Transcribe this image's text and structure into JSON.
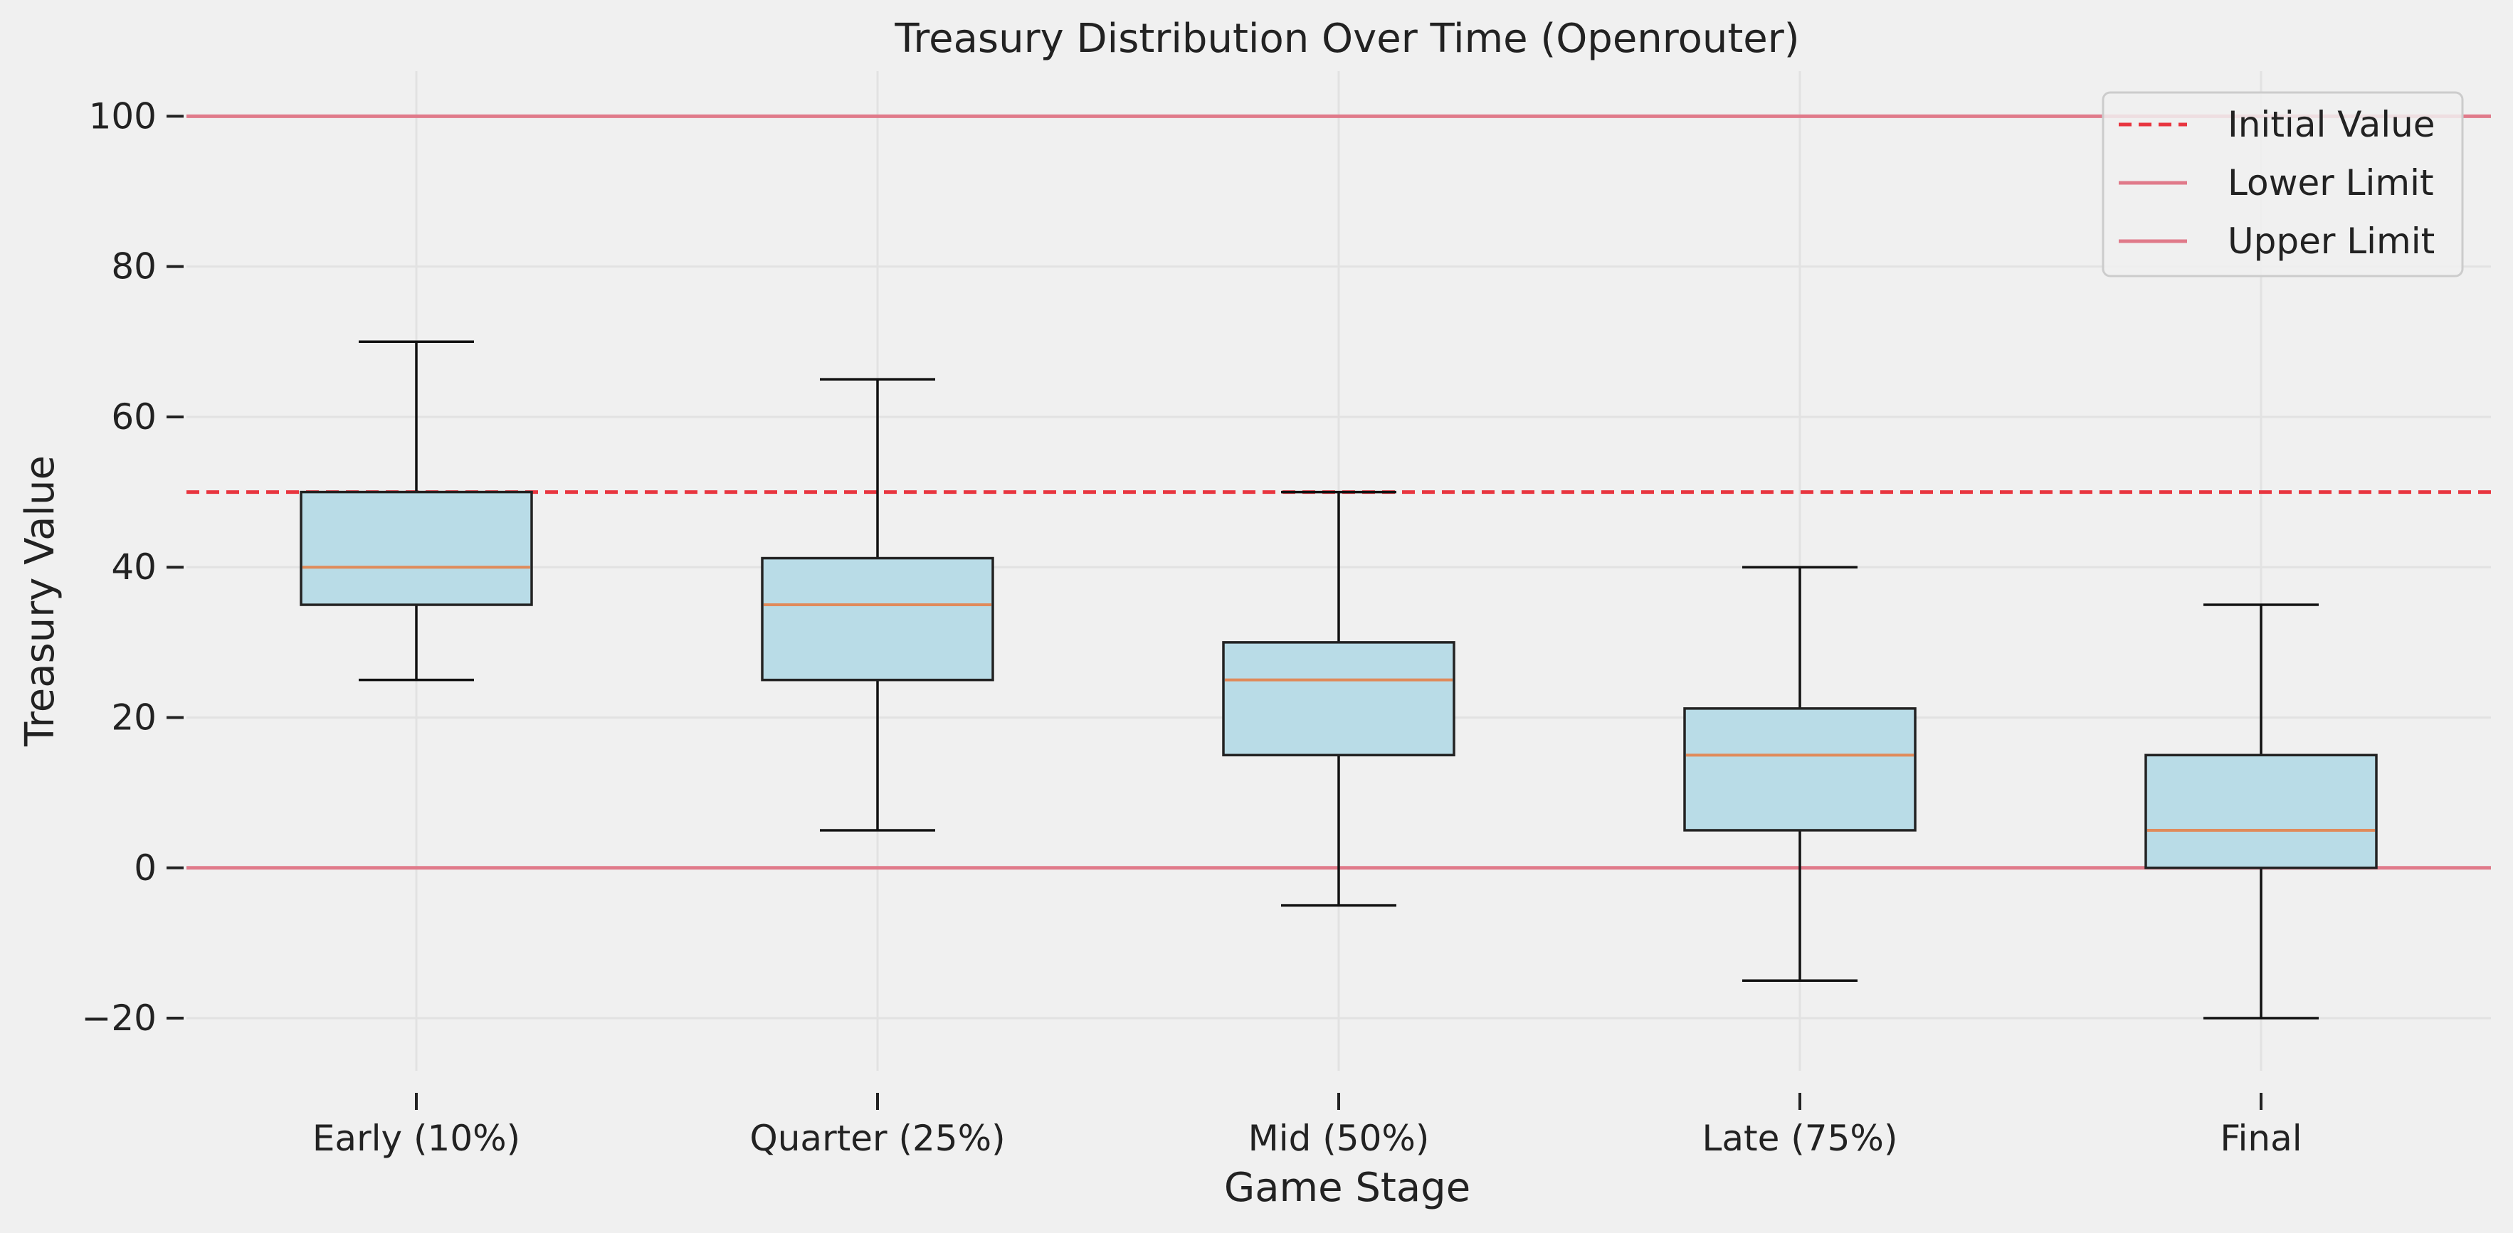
{
  "chart_data": {
    "type": "box",
    "title": "Treasury Distribution Over Time (Openrouter)",
    "xlabel": "Game Stage",
    "ylabel": "Treasury Value",
    "ylim": [
      -27,
      106
    ],
    "yticks": [
      -20,
      0,
      20,
      40,
      60,
      80,
      100
    ],
    "ytick_labels": [
      "−20",
      "0",
      "20",
      "40",
      "60",
      "80",
      "100"
    ],
    "grid": true,
    "legend_position": "top-right",
    "categories": [
      "Early (10%)",
      "Quarter (25%)",
      "Mid (50%)",
      "Late (75%)",
      "Final"
    ],
    "boxes": [
      {
        "whisker_low": 25,
        "q1": 35,
        "median": 40,
        "q3": 50,
        "whisker_high": 70
      },
      {
        "whisker_low": 5,
        "q1": 25,
        "median": 35,
        "q3": 41.2,
        "whisker_high": 65
      },
      {
        "whisker_low": -5,
        "q1": 15,
        "median": 25,
        "q3": 30,
        "whisker_high": 50
      },
      {
        "whisker_low": -15,
        "q1": 5,
        "median": 15,
        "q3": 21.2,
        "whisker_high": 40
      },
      {
        "whisker_low": -20,
        "q1": 0,
        "median": 5,
        "q3": 15,
        "whisker_high": 35
      }
    ],
    "reference_lines": [
      {
        "name": "Initial Value",
        "y": 50,
        "style": "dashed",
        "color": "#e8353f"
      },
      {
        "name": "Lower Limit",
        "y": 0,
        "style": "solid",
        "color": "#e07a8a"
      },
      {
        "name": "Upper Limit",
        "y": 100,
        "style": "solid",
        "color": "#e07a8a"
      }
    ],
    "colors": {
      "box_fill": "#b9dce7",
      "box_edge": "#222222",
      "median": "#e08a5a",
      "grid": "#e2e2e2",
      "background": "#f0f0f0"
    }
  }
}
